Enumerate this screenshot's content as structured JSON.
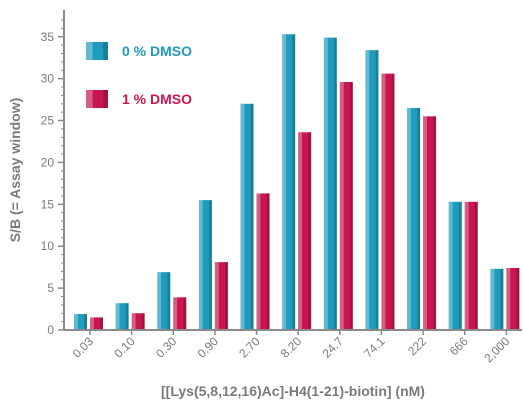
{
  "chart_data": {
    "type": "bar",
    "categories": [
      "0.03",
      "0.10",
      "0.30",
      "0.90",
      "2.70",
      "8.20",
      "24.7",
      "74.1",
      "222",
      "666",
      "2,000"
    ],
    "series": [
      {
        "name": "0 % DMSO",
        "color": "#1f9bbd",
        "values": [
          1.9,
          3.2,
          6.9,
          15.5,
          27.0,
          35.3,
          34.9,
          33.4,
          26.5,
          15.3,
          7.3
        ]
      },
      {
        "name": "1 % DMSO",
        "color": "#c8174f",
        "values": [
          1.5,
          2.0,
          3.9,
          8.1,
          16.3,
          23.6,
          29.6,
          30.6,
          25.5,
          15.3,
          7.4
        ]
      }
    ],
    "xlabel": "[[Lys(5,8,12,16)Ac]-H4(1-21)-biotin] (nM)",
    "ylabel": "S/B (= Assay window)",
    "ylim": [
      0,
      37
    ],
    "yticks": [
      "0",
      "5",
      "10",
      "15",
      "20",
      "25",
      "30",
      "35"
    ],
    "grid": false,
    "legend": "top-left"
  }
}
